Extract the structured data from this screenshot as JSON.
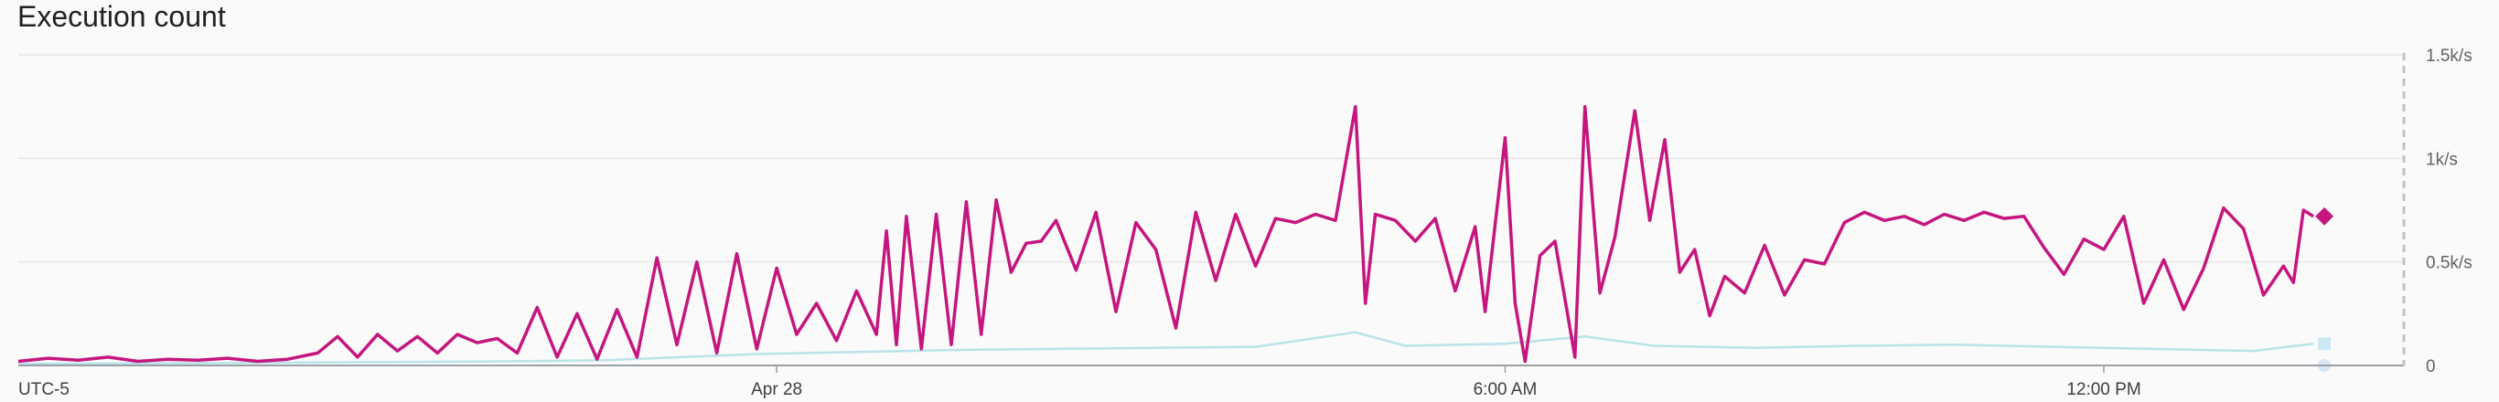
{
  "chart_data": {
    "type": "line",
    "title": "Execution count",
    "timezone_label": "UTC-5",
    "x_ticks": [
      {
        "label": "Apr 28",
        "hours": 6.7
      },
      {
        "label": "6:00 AM",
        "hours": 14.0
      },
      {
        "label": "12:00 PM",
        "hours": 20.0
      }
    ],
    "x_range_hours": [
      -0.9,
      22.2
    ],
    "y_ticks": [
      {
        "label": "1.5k/s",
        "value": 1500
      },
      {
        "label": "1k/s",
        "value": 1000
      },
      {
        "label": "0.5k/s",
        "value": 500
      },
      {
        "label": "0",
        "value": 0
      }
    ],
    "ylim": [
      0,
      1500
    ],
    "grid": true,
    "colors": {
      "primary": "#c5167f",
      "secondary": "#b9e3e8",
      "grid": "#e6e6e6",
      "axis": "#9aa0a6"
    },
    "series": [
      {
        "key": "primary",
        "points": [
          [
            -0.9,
            20
          ],
          [
            -0.6,
            35
          ],
          [
            -0.3,
            25
          ],
          [
            0.0,
            40
          ],
          [
            0.3,
            20
          ],
          [
            0.6,
            30
          ],
          [
            0.9,
            25
          ],
          [
            1.2,
            35
          ],
          [
            1.5,
            20
          ],
          [
            1.8,
            30
          ],
          [
            2.1,
            60
          ],
          [
            2.3,
            140
          ],
          [
            2.5,
            40
          ],
          [
            2.7,
            150
          ],
          [
            2.9,
            70
          ],
          [
            3.1,
            140
          ],
          [
            3.3,
            60
          ],
          [
            3.5,
            150
          ],
          [
            3.7,
            110
          ],
          [
            3.9,
            130
          ],
          [
            4.1,
            60
          ],
          [
            4.3,
            280
          ],
          [
            4.5,
            40
          ],
          [
            4.7,
            250
          ],
          [
            4.9,
            30
          ],
          [
            5.1,
            270
          ],
          [
            5.3,
            40
          ],
          [
            5.5,
            520
          ],
          [
            5.7,
            100
          ],
          [
            5.9,
            500
          ],
          [
            6.1,
            60
          ],
          [
            6.3,
            540
          ],
          [
            6.5,
            80
          ],
          [
            6.7,
            470
          ],
          [
            6.9,
            150
          ],
          [
            7.1,
            300
          ],
          [
            7.3,
            120
          ],
          [
            7.5,
            360
          ],
          [
            7.7,
            150
          ],
          [
            7.8,
            650
          ],
          [
            7.9,
            100
          ],
          [
            8.0,
            720
          ],
          [
            8.15,
            80
          ],
          [
            8.3,
            730
          ],
          [
            8.45,
            100
          ],
          [
            8.6,
            790
          ],
          [
            8.75,
            150
          ],
          [
            8.9,
            800
          ],
          [
            9.05,
            450
          ],
          [
            9.2,
            590
          ],
          [
            9.35,
            600
          ],
          [
            9.5,
            700
          ],
          [
            9.7,
            460
          ],
          [
            9.9,
            740
          ],
          [
            10.1,
            260
          ],
          [
            10.3,
            690
          ],
          [
            10.5,
            560
          ],
          [
            10.7,
            180
          ],
          [
            10.9,
            740
          ],
          [
            11.1,
            410
          ],
          [
            11.3,
            730
          ],
          [
            11.5,
            480
          ],
          [
            11.7,
            710
          ],
          [
            11.9,
            690
          ],
          [
            12.1,
            730
          ],
          [
            12.3,
            700
          ],
          [
            12.5,
            1250
          ],
          [
            12.6,
            300
          ],
          [
            12.7,
            730
          ],
          [
            12.9,
            700
          ],
          [
            13.1,
            600
          ],
          [
            13.3,
            710
          ],
          [
            13.5,
            360
          ],
          [
            13.7,
            670
          ],
          [
            13.8,
            260
          ],
          [
            14.0,
            1100
          ],
          [
            14.1,
            300
          ],
          [
            14.2,
            20
          ],
          [
            14.35,
            530
          ],
          [
            14.5,
            600
          ],
          [
            14.7,
            40
          ],
          [
            14.8,
            1250
          ],
          [
            14.95,
            350
          ],
          [
            15.1,
            620
          ],
          [
            15.3,
            1230
          ],
          [
            15.45,
            700
          ],
          [
            15.6,
            1090
          ],
          [
            15.75,
            450
          ],
          [
            15.9,
            560
          ],
          [
            16.05,
            240
          ],
          [
            16.2,
            430
          ],
          [
            16.4,
            350
          ],
          [
            16.6,
            580
          ],
          [
            16.8,
            340
          ],
          [
            17.0,
            510
          ],
          [
            17.2,
            490
          ],
          [
            17.4,
            690
          ],
          [
            17.6,
            740
          ],
          [
            17.8,
            700
          ],
          [
            18.0,
            720
          ],
          [
            18.2,
            680
          ],
          [
            18.4,
            730
          ],
          [
            18.6,
            700
          ],
          [
            18.8,
            740
          ],
          [
            19.0,
            710
          ],
          [
            19.2,
            720
          ],
          [
            19.4,
            570
          ],
          [
            19.6,
            440
          ],
          [
            19.8,
            610
          ],
          [
            20.0,
            560
          ],
          [
            20.2,
            720
          ],
          [
            20.4,
            300
          ],
          [
            20.6,
            510
          ],
          [
            20.8,
            270
          ],
          [
            21.0,
            470
          ],
          [
            21.2,
            760
          ],
          [
            21.4,
            660
          ],
          [
            21.6,
            340
          ],
          [
            21.8,
            480
          ],
          [
            21.9,
            400
          ],
          [
            22.0,
            750
          ],
          [
            22.1,
            720
          ]
        ]
      },
      {
        "key": "secondary",
        "points": [
          [
            -0.9,
            8
          ],
          [
            0.5,
            10
          ],
          [
            2.0,
            14
          ],
          [
            3.5,
            18
          ],
          [
            5.0,
            25
          ],
          [
            6.5,
            55
          ],
          [
            7.5,
            65
          ],
          [
            8.5,
            75
          ],
          [
            9.5,
            80
          ],
          [
            10.5,
            85
          ],
          [
            11.5,
            90
          ],
          [
            12.5,
            160
          ],
          [
            13.0,
            95
          ],
          [
            14.0,
            105
          ],
          [
            14.8,
            140
          ],
          [
            15.5,
            95
          ],
          [
            16.5,
            85
          ],
          [
            17.5,
            95
          ],
          [
            18.5,
            100
          ],
          [
            19.5,
            90
          ],
          [
            20.5,
            80
          ],
          [
            21.5,
            70
          ],
          [
            22.1,
            105
          ]
        ]
      }
    ]
  }
}
